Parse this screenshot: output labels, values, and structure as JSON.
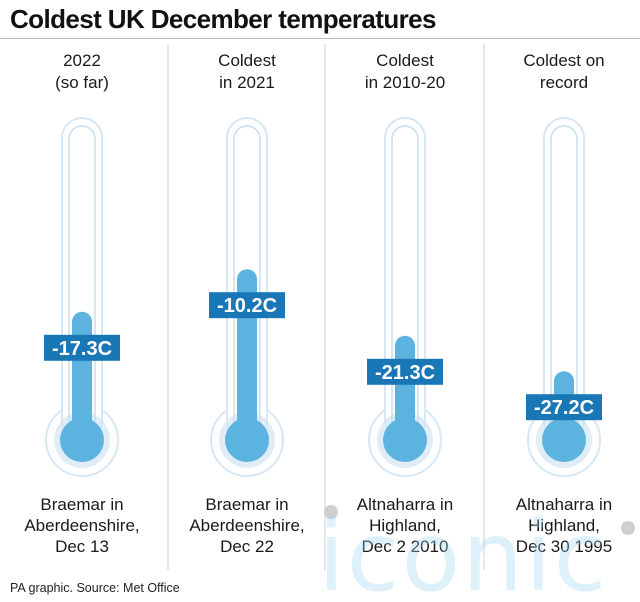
{
  "title": "Coldest UK December temperatures",
  "source": "PA graphic. Source: Met Office",
  "watermark": "iconic",
  "colors": {
    "tube_outline": "#d6e8f5",
    "tube_fill": "#ffffff",
    "glass_shadow": "#c6dff1",
    "mercury": "#5db3e0",
    "label_bg": "#1a77b5",
    "label_text": "#ffffff"
  },
  "chart_data": {
    "type": "bar",
    "title": "Coldest UK December temperatures",
    "unit": "C",
    "ylim": [
      -32,
      0
    ],
    "categories": [
      "2022\n(so far)",
      "Coldest\nin 2021",
      "Coldest\nin 2010-20",
      "Coldest on\nrecord"
    ],
    "values": [
      -17.3,
      -10.2,
      -21.3,
      -27.2
    ],
    "value_labels": [
      "-17.3C",
      "-10.2C",
      "-21.3C",
      "-27.2C"
    ],
    "locations": [
      [
        "Braemar in",
        "Aberdeenshire,",
        "Dec 13"
      ],
      [
        "Braemar in",
        "Aberdeenshire,",
        "Dec 22"
      ],
      [
        "Altnaharra in",
        "Highland,",
        "Dec 2 2010"
      ],
      [
        "Altnaharra in",
        "Highland,",
        "Dec 30 1995"
      ]
    ]
  }
}
